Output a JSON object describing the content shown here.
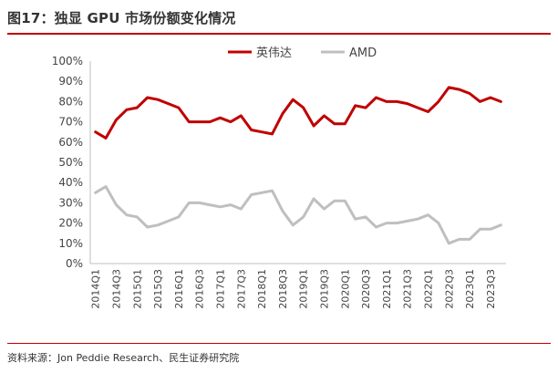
{
  "figure_title": "图17：独显 GPU 市场份额变化情况",
  "source_note": "资料来源：Jon Peddie Research、民生证券研究院",
  "chart_data": {
    "type": "line",
    "x": [
      "2014Q1",
      "2014Q2",
      "2014Q3",
      "2014Q4",
      "2015Q1",
      "2015Q2",
      "2015Q3",
      "2015Q4",
      "2016Q1",
      "2016Q2",
      "2016Q3",
      "2016Q4",
      "2017Q1",
      "2017Q2",
      "2017Q3",
      "2017Q4",
      "2018Q1",
      "2018Q2",
      "2018Q3",
      "2018Q4",
      "2019Q1",
      "2019Q2",
      "2019Q3",
      "2019Q4",
      "2020Q1",
      "2020Q2",
      "2020Q3",
      "2020Q4",
      "2021Q1",
      "2021Q2",
      "2021Q3",
      "2021Q4",
      "2022Q1",
      "2022Q2",
      "2022Q3",
      "2022Q4",
      "2023Q1",
      "2023Q2",
      "2023Q3",
      "2023Q4"
    ],
    "x_tick_labels": [
      "2014Q1",
      "2014Q3",
      "2015Q1",
      "2015Q3",
      "2016Q1",
      "2016Q3",
      "2017Q1",
      "2017Q3",
      "2018Q1",
      "2018Q3",
      "2019Q1",
      "2019Q3",
      "2020Q1",
      "2020Q3",
      "2021Q1",
      "2021Q3",
      "2022Q1",
      "2022Q3",
      "2023Q1",
      "2023Q3"
    ],
    "y_tick_labels": [
      "0%",
      "10%",
      "20%",
      "30%",
      "40%",
      "50%",
      "60%",
      "70%",
      "80%",
      "90%",
      "100%"
    ],
    "ylim": [
      0,
      100
    ],
    "legend_position": "top",
    "grid": false,
    "series": [
      {
        "name": "英伟达",
        "color": "#c00000",
        "values": [
          65,
          62,
          71,
          76,
          77,
          82,
          81,
          79,
          77,
          70,
          70,
          70,
          72,
          70,
          73,
          66,
          65,
          64,
          74,
          81,
          77,
          68,
          73,
          69,
          69,
          78,
          77,
          82,
          80,
          80,
          79,
          77,
          75,
          80,
          87,
          86,
          84,
          80,
          82,
          80
        ]
      },
      {
        "name": "AMD",
        "color": "#bfbfbf",
        "values": [
          35,
          38,
          29,
          24,
          23,
          18,
          19,
          21,
          23,
          30,
          30,
          29,
          28,
          29,
          27,
          34,
          35,
          36,
          26,
          19,
          23,
          32,
          27,
          31,
          31,
          22,
          23,
          18,
          20,
          20,
          21,
          22,
          24,
          20,
          10,
          12,
          12,
          17,
          17,
          19
        ]
      }
    ]
  }
}
